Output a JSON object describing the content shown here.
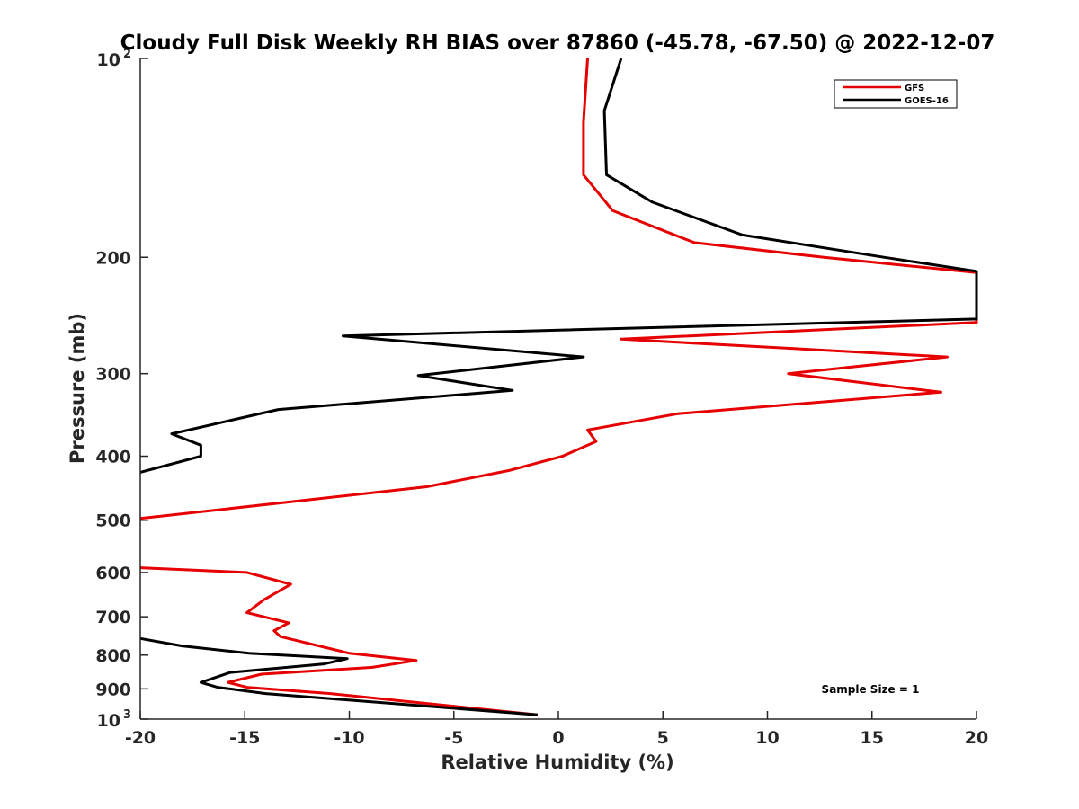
{
  "chart_data": {
    "type": "line",
    "title": "Cloudy Full Disk Weekly RH BIAS over 87860 (-45.78, -67.50) @ 2022-12-07",
    "xlabel": "Relative Humidity (%)",
    "ylabel": "Pressure (mb)",
    "xlim": [
      -20,
      20
    ],
    "ylim": [
      100,
      1000
    ],
    "y_scale": "log",
    "y_reversed": true,
    "x_ticks": [
      "-20",
      "-15",
      "-10",
      "-5",
      "0",
      "5",
      "10",
      "15",
      "20"
    ],
    "y_ticks": [
      {
        "value": 100,
        "base": "10",
        "exp": "2"
      },
      {
        "value": 200,
        "label": "200"
      },
      {
        "value": 300,
        "label": "300"
      },
      {
        "value": 400,
        "label": "400"
      },
      {
        "value": 500,
        "label": "500"
      },
      {
        "value": 600,
        "label": "600"
      },
      {
        "value": 700,
        "label": "700"
      },
      {
        "value": 800,
        "label": "800"
      },
      {
        "value": 900,
        "label": "900"
      },
      {
        "value": 1000,
        "base": "10",
        "exp": "3"
      }
    ],
    "grid": false,
    "legend_position": "top-right",
    "annotation": "Sample Size = 1",
    "series": [
      {
        "name": "GFS",
        "color": "#e60000",
        "points": [
          [
            1.4,
            100
          ],
          [
            1.2,
            125
          ],
          [
            1.2,
            150
          ],
          [
            2.6,
            170
          ],
          [
            6.5,
            190
          ],
          [
            12.7,
            200
          ],
          [
            20.0,
            211
          ],
          [
            20.0,
            251
          ],
          [
            3.0,
            266
          ],
          [
            18.6,
            283
          ],
          [
            11.0,
            300
          ],
          [
            18.3,
            320
          ],
          [
            5.7,
            345
          ],
          [
            1.4,
            365
          ],
          [
            1.8,
            380
          ],
          [
            0.2,
            400
          ],
          [
            -2.3,
            420
          ],
          [
            -6.3,
            445
          ],
          [
            -20.0,
            497
          ],
          [
            null,
            null
          ],
          [
            -20.0,
            590
          ],
          [
            -14.9,
            600
          ],
          [
            -12.8,
            625
          ],
          [
            -14.1,
            660
          ],
          [
            -14.9,
            690
          ],
          [
            -12.9,
            715
          ],
          [
            -13.6,
            735
          ],
          [
            -13.3,
            750
          ],
          [
            -10.0,
            795
          ],
          [
            -6.8,
            815
          ],
          [
            -8.9,
            835
          ],
          [
            -14.2,
            855
          ],
          [
            -15.8,
            880
          ],
          [
            -14.9,
            895
          ],
          [
            -10.9,
            915
          ],
          [
            -1.0,
            985
          ]
        ]
      },
      {
        "name": "GOES-16",
        "color": "#000000",
        "points": [
          [
            3.0,
            100
          ],
          [
            2.2,
            120
          ],
          [
            2.3,
            150
          ],
          [
            4.5,
            165
          ],
          [
            8.8,
            185
          ],
          [
            15.6,
            200
          ],
          [
            20.0,
            210
          ],
          [
            20.0,
            248
          ],
          [
            -10.3,
            263
          ],
          [
            1.2,
            283
          ],
          [
            -6.7,
            302
          ],
          [
            -2.2,
            318
          ],
          [
            -13.4,
            340
          ],
          [
            -18.5,
            370
          ],
          [
            -17.1,
            385
          ],
          [
            -17.1,
            400
          ],
          [
            -20.0,
            423
          ],
          [
            null,
            null
          ],
          [
            -20.0,
            755
          ],
          [
            -18.0,
            775
          ],
          [
            -14.8,
            795
          ],
          [
            -10.1,
            810
          ],
          [
            -11.2,
            825
          ],
          [
            -15.7,
            850
          ],
          [
            -17.1,
            880
          ],
          [
            -16.3,
            895
          ],
          [
            -14.0,
            915
          ],
          [
            -1.0,
            985
          ]
        ]
      }
    ]
  }
}
